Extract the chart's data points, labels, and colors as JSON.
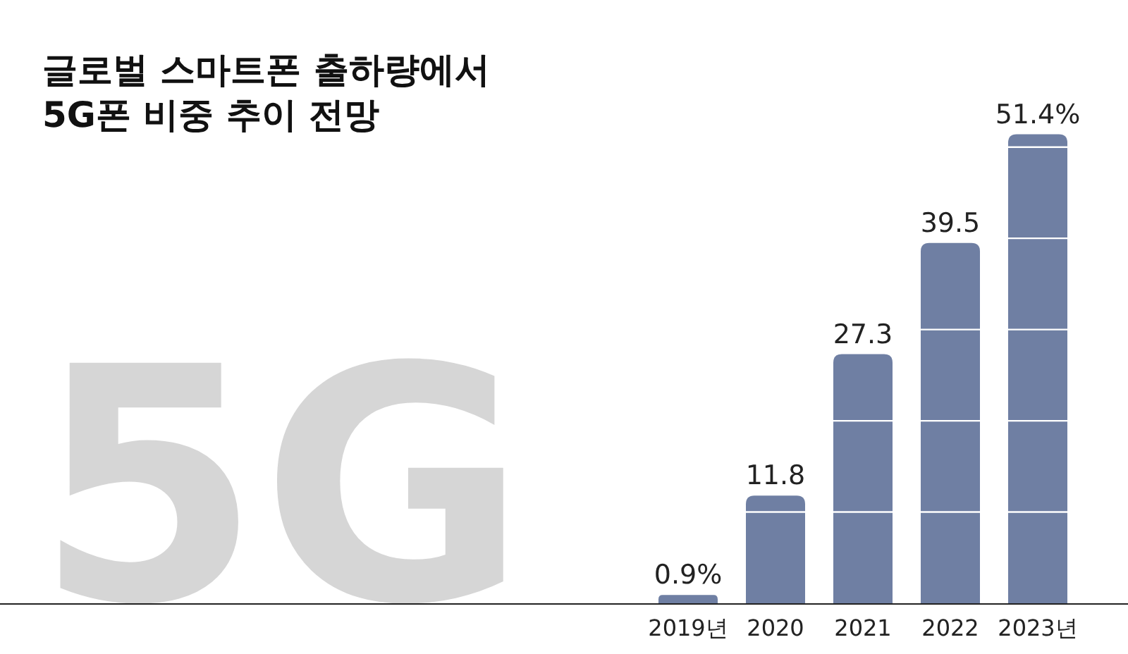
{
  "chart_data": {
    "type": "bar",
    "title": "글로벌 스마트폰 출하량에서\n5G폰 비중 추이 전망",
    "annotations": [
      "5G"
    ],
    "categories": [
      "2019년",
      "2020",
      "2021",
      "2022",
      "2023년"
    ],
    "values": [
      0.9,
      11.8,
      27.3,
      39.5,
      51.4
    ],
    "value_labels": [
      "0.9%",
      "11.8",
      "27.3",
      "39.5",
      "51.4%"
    ],
    "color": "#6f7fa3",
    "yticks": [
      {
        "value": 10,
        "label": null
      },
      {
        "value": 20,
        "label": null
      },
      {
        "value": 30,
        "label": null
      },
      {
        "value": 40,
        "label": null
      },
      {
        "value": 50,
        "label": null
      }
    ],
    "grid": "y"
  }
}
